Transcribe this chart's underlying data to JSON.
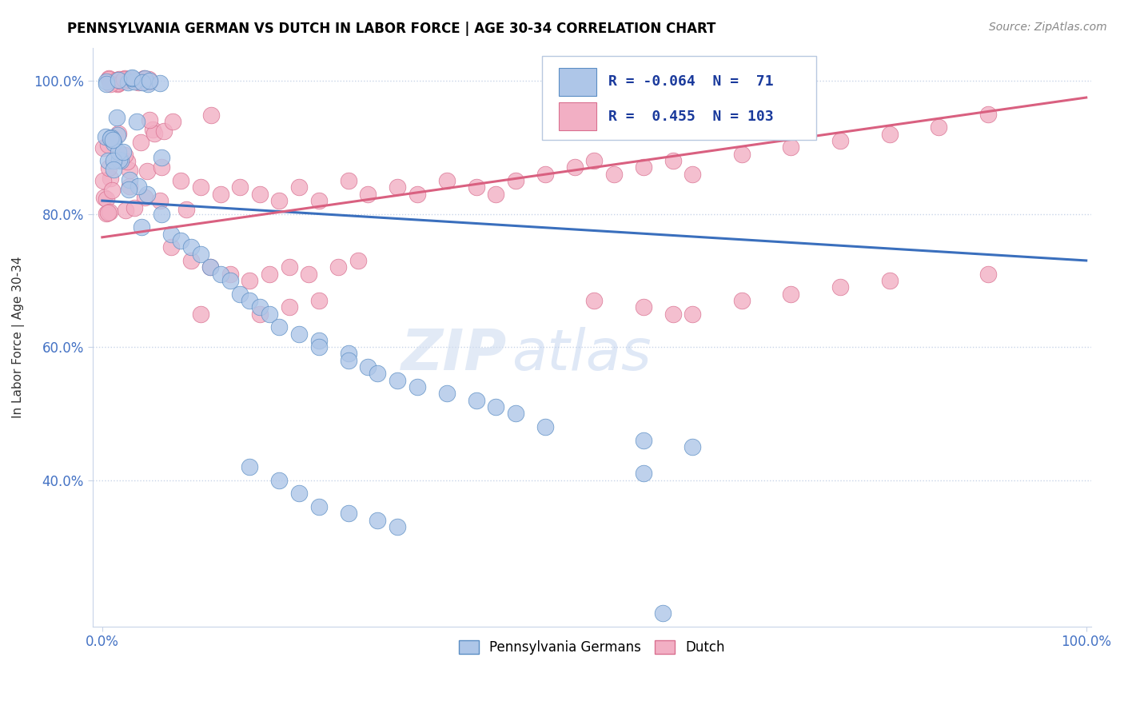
{
  "title": "PENNSYLVANIA GERMAN VS DUTCH IN LABOR FORCE | AGE 30-34 CORRELATION CHART",
  "source_text": "Source: ZipAtlas.com",
  "ylabel": "In Labor Force | Age 30-34",
  "legend_labels": [
    "Pennsylvania Germans",
    "Dutch"
  ],
  "blue_R": -0.064,
  "blue_N": 71,
  "pink_R": 0.455,
  "pink_N": 103,
  "blue_color": "#aec6e8",
  "pink_color": "#f2afc4",
  "blue_edge_color": "#5b8ec4",
  "pink_edge_color": "#d97090",
  "blue_line_color": "#3a6fbd",
  "pink_line_color": "#d96080",
  "watermark_zip": "ZIP",
  "watermark_atlas": "atlas",
  "xlim": [
    0.0,
    1.0
  ],
  "ylim": [
    0.18,
    1.05
  ],
  "yticks": [
    0.4,
    0.6,
    0.8,
    1.0
  ],
  "ytick_labels": [
    "40.0%",
    "60.0%",
    "80.0%",
    "100.0%"
  ],
  "xticks": [
    0.0,
    1.0
  ],
  "xtick_labels": [
    "0.0%",
    "100.0%"
  ],
  "blue_line_x0": 0.0,
  "blue_line_y0": 0.82,
  "blue_line_x1": 1.0,
  "blue_line_y1": 0.73,
  "pink_line_x0": 0.0,
  "pink_line_y0": 0.765,
  "pink_line_x1": 1.0,
  "pink_line_y1": 0.975
}
